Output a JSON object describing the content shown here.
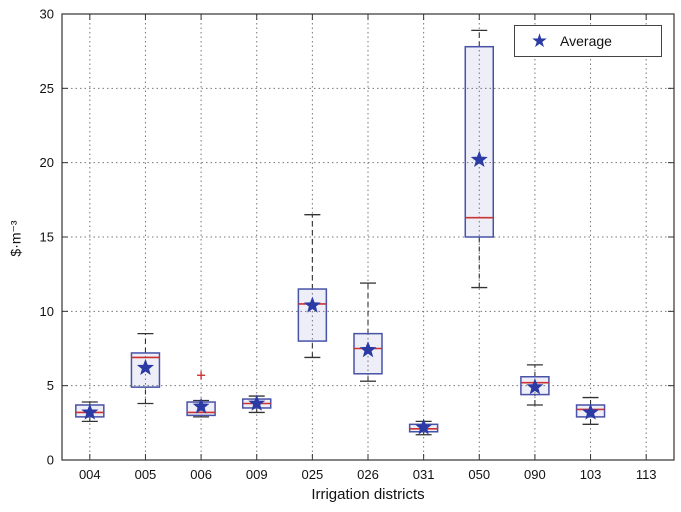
{
  "chart_data": {
    "type": "boxplot",
    "title": "",
    "xlabel": "Irrigation districts",
    "ylabel": "$·m⁻³",
    "ylim": [
      0,
      30
    ],
    "yticks": [
      0,
      5,
      10,
      15,
      20,
      25,
      30
    ],
    "categories": [
      "004",
      "005",
      "006",
      "009",
      "025",
      "026",
      "031",
      "050",
      "090",
      "103",
      "113"
    ],
    "legend": {
      "label": "Average",
      "marker": "star"
    },
    "grid": "dotted",
    "series": [
      {
        "category": "004",
        "whisker_low": 2.6,
        "q1": 2.9,
        "median": 3.2,
        "q3": 3.7,
        "whisker_high": 3.9,
        "average": 3.2,
        "outliers": []
      },
      {
        "category": "005",
        "whisker_low": 3.8,
        "q1": 4.9,
        "median": 6.9,
        "q3": 7.2,
        "whisker_high": 8.5,
        "average": 6.2,
        "outliers": []
      },
      {
        "category": "006",
        "whisker_low": 2.9,
        "q1": 3.0,
        "median": 3.2,
        "q3": 3.9,
        "whisker_high": 4.0,
        "average": 3.6,
        "outliers": [
          5.7
        ]
      },
      {
        "category": "009",
        "whisker_low": 3.2,
        "q1": 3.5,
        "median": 3.8,
        "q3": 4.1,
        "whisker_high": 4.3,
        "average": 3.8,
        "outliers": []
      },
      {
        "category": "025",
        "whisker_low": 6.9,
        "q1": 8.0,
        "median": 10.5,
        "q3": 11.5,
        "whisker_high": 16.5,
        "average": 10.4,
        "outliers": []
      },
      {
        "category": "026",
        "whisker_low": 5.3,
        "q1": 5.8,
        "median": 7.5,
        "q3": 8.5,
        "whisker_high": 11.9,
        "average": 7.4,
        "outliers": []
      },
      {
        "category": "031",
        "whisker_low": 1.7,
        "q1": 1.9,
        "median": 2.1,
        "q3": 2.4,
        "whisker_high": 2.6,
        "average": 2.2,
        "outliers": []
      },
      {
        "category": "050",
        "whisker_low": 11.6,
        "q1": 15.0,
        "median": 16.3,
        "q3": 27.8,
        "whisker_high": 28.9,
        "average": 20.2,
        "outliers": []
      },
      {
        "category": "090",
        "whisker_low": 3.7,
        "q1": 4.4,
        "median": 5.2,
        "q3": 5.6,
        "whisker_high": 6.4,
        "average": 4.9,
        "outliers": []
      },
      {
        "category": "103",
        "whisker_low": 2.4,
        "q1": 2.9,
        "median": 3.4,
        "q3": 3.7,
        "whisker_high": 4.2,
        "average": 3.2,
        "outliers": []
      },
      {
        "category": "113"
      }
    ]
  },
  "colors": {
    "box": "#4752a8",
    "box_fill": "rgba(80,90,180,0.10)",
    "median": "#cc3333",
    "whisker": "#333333",
    "cap": "#333333",
    "average_marker": "#2b3aa5",
    "outlier": "#cc3333",
    "grid": "#777777",
    "axis": "#333333",
    "text": "#111111"
  }
}
